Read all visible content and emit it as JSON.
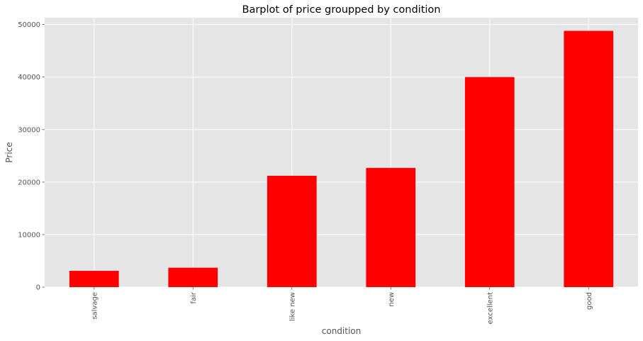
{
  "chart_data": {
    "type": "bar",
    "title": "Barplot of price groupped by condition",
    "xlabel": "condition",
    "ylabel": "Price",
    "categories": [
      "salvage",
      "fair",
      "like new",
      "new",
      "excellent",
      "good"
    ],
    "values": [
      3100,
      3700,
      21200,
      22700,
      40000,
      48800
    ],
    "ylim": [
      0,
      51300
    ],
    "yticks": [
      0,
      10000,
      20000,
      30000,
      40000,
      50000
    ],
    "grid": true,
    "legend": "none",
    "colors": {
      "bar": "#ff0000",
      "plot_background": "#e5e5e5",
      "grid": "#ffffff"
    }
  }
}
